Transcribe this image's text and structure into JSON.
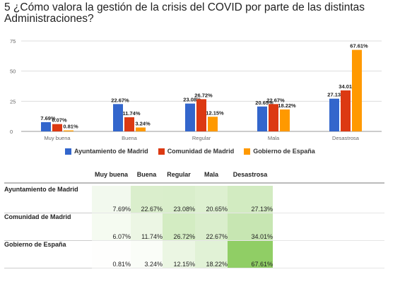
{
  "title": "5 ¿Cómo valora la gestión de la crisis del COVID por parte de las distintas Administraciones?",
  "colors": {
    "series1": "#3366cc",
    "series2": "#dc3912",
    "series3": "#ff9900",
    "grid": "#dddddd",
    "axis_text": "#666666"
  },
  "chart_data": {
    "type": "bar",
    "categories": [
      "Muy buena",
      "Buena",
      "Regular",
      "Mala",
      "Desastrosa"
    ],
    "series": [
      {
        "name": "Ayuntamiento de Madrid",
        "values": [
          7.69,
          22.67,
          23.08,
          20.65,
          27.13
        ],
        "labels": [
          "7.69%",
          "22.67%",
          "23.08%",
          "20.65%",
          "27.13%"
        ]
      },
      {
        "name": "Comunidad de Madrid",
        "values": [
          6.07,
          11.74,
          26.72,
          22.67,
          34.01
        ],
        "labels": [
          "6.07%",
          "11.74%",
          "26.72%",
          "22.67%",
          "34.01%"
        ]
      },
      {
        "name": "Gobierno de España",
        "values": [
          0.81,
          3.24,
          12.15,
          18.22,
          67.61
        ],
        "labels": [
          "0.81%",
          "3.24%",
          "12.15%",
          "18.22%",
          "67.61%"
        ]
      }
    ],
    "yticks": [
      "0",
      "25",
      "50",
      "75"
    ],
    "ylim": [
      0,
      75
    ],
    "grid": true,
    "legend": "bottom"
  },
  "table": {
    "columns": [
      "Muy buena",
      "Buena",
      "Regular",
      "Mala",
      "Desastrosa"
    ],
    "rows": [
      {
        "label": "Ayuntamiento de Madrid",
        "cells": [
          "7.69%",
          "22.67%",
          "23.08%",
          "20.65%",
          "27.13%"
        ],
        "values": [
          7.69,
          22.67,
          23.08,
          20.65,
          27.13
        ]
      },
      {
        "label": "Comunidad de Madrid",
        "cells": [
          "6.07%",
          "11.74%",
          "26.72%",
          "22.67%",
          "34.01%"
        ],
        "values": [
          6.07,
          11.74,
          26.72,
          22.67,
          34.01
        ]
      },
      {
        "label": "Gobierno de España",
        "cells": [
          "0.81%",
          "3.24%",
          "12.15%",
          "18.22%",
          "67.61%"
        ],
        "values": [
          0.81,
          3.24,
          12.15,
          18.22,
          67.61
        ]
      }
    ]
  }
}
